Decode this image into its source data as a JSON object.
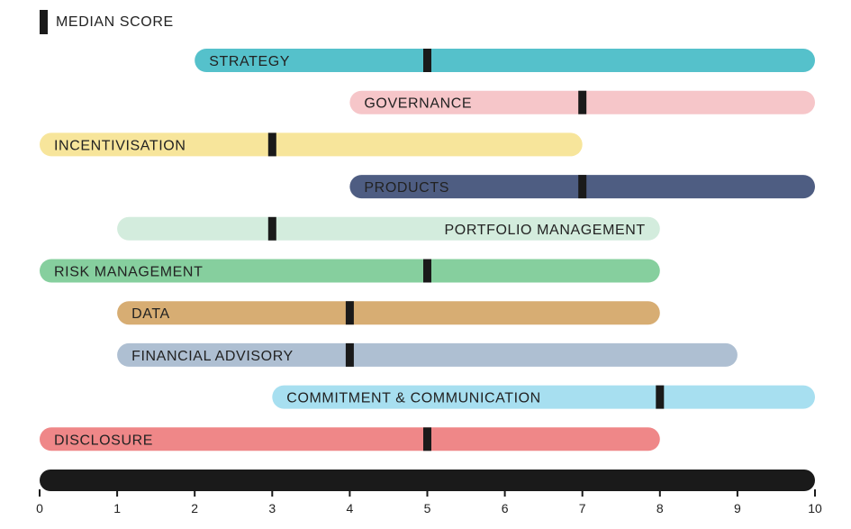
{
  "chart_data": {
    "type": "range-bar",
    "legend": {
      "label": "MEDIAN SCORE",
      "placement": "top-left",
      "marker_color": "#1a1a1a"
    },
    "xlim": [
      0,
      10
    ],
    "ticks": [
      "0",
      "1",
      "2",
      "3",
      "4",
      "5",
      "6",
      "7",
      "8",
      "9",
      "10"
    ],
    "axis_color": "#1a1a1a",
    "series": [
      {
        "label": "STRATEGY",
        "min": 2,
        "max": 10,
        "median": 5,
        "color": "#55c1cb",
        "label_align": "start"
      },
      {
        "label": "GOVERNANCE",
        "min": 4,
        "max": 10,
        "median": 7,
        "color": "#f6c6c9",
        "label_align": "start"
      },
      {
        "label": "INCENTIVISATION",
        "min": 0,
        "max": 7,
        "median": 3,
        "color": "#f7e59b",
        "label_align": "start"
      },
      {
        "label": "PRODUCTS",
        "min": 4,
        "max": 10,
        "median": 7,
        "color": "#4e5d82",
        "label_align": "start"
      },
      {
        "label": "PORTFOLIO MANAGEMENT",
        "min": 1,
        "max": 8,
        "median": 3,
        "color": "#d3ecdd",
        "label_align": "end"
      },
      {
        "label": "RISK MANAGEMENT",
        "min": 0,
        "max": 8,
        "median": 5,
        "color": "#86cf9e",
        "label_align": "start"
      },
      {
        "label": "DATA",
        "min": 1,
        "max": 8,
        "median": 4,
        "color": "#d7ad73",
        "label_align": "start"
      },
      {
        "label": "FINANCIAL ADVISORY",
        "min": 1,
        "max": 9,
        "median": 4,
        "color": "#aebfd2",
        "label_align": "start"
      },
      {
        "label": "COMMITMENT & COMMUNICATION",
        "min": 3,
        "max": 10,
        "median": 8,
        "color": "#a7dff0",
        "label_align": "start"
      },
      {
        "label": "DISCLOSURE",
        "min": 0,
        "max": 8,
        "median": 5,
        "color": "#ef8788",
        "label_align": "start"
      }
    ]
  }
}
